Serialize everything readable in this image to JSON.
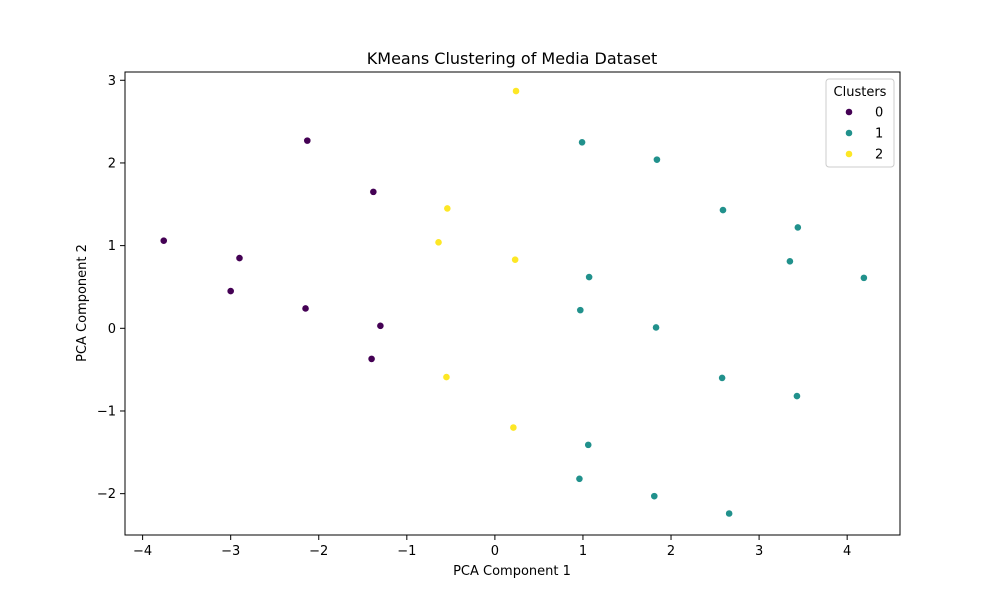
{
  "chart_data": {
    "type": "scatter",
    "title": "KMeans Clustering of Media Dataset",
    "xlabel": "PCA Component 1",
    "ylabel": "PCA Component 2",
    "xlim": [
      -4.2,
      4.6
    ],
    "ylim": [
      -2.5,
      3.1
    ],
    "xticks": [
      -4,
      -3,
      -2,
      -1,
      0,
      1,
      2,
      3,
      4
    ],
    "yticks": [
      -2,
      -1,
      0,
      1,
      2,
      3
    ],
    "grid": false,
    "legend": {
      "title": "Clusters",
      "placement": "top-right"
    },
    "series": [
      {
        "name": "0",
        "color": "#440154",
        "points": [
          [
            -3.76,
            1.06
          ],
          [
            -2.13,
            2.27
          ],
          [
            -1.38,
            1.65
          ],
          [
            -2.9,
            0.85
          ],
          [
            -3.0,
            0.45
          ],
          [
            -2.15,
            0.24
          ],
          [
            -1.3,
            0.03
          ],
          [
            -1.4,
            -0.37
          ]
        ]
      },
      {
        "name": "1",
        "color": "#21918c",
        "points": [
          [
            0.99,
            2.25
          ],
          [
            1.84,
            2.04
          ],
          [
            2.59,
            1.43
          ],
          [
            3.44,
            1.22
          ],
          [
            3.35,
            0.81
          ],
          [
            4.19,
            0.61
          ],
          [
            1.07,
            0.62
          ],
          [
            0.97,
            0.22
          ],
          [
            1.83,
            0.01
          ],
          [
            2.58,
            -0.6
          ],
          [
            3.43,
            -0.82
          ],
          [
            1.06,
            -1.41
          ],
          [
            0.96,
            -1.82
          ],
          [
            1.81,
            -2.03
          ],
          [
            2.66,
            -2.24
          ]
        ]
      },
      {
        "name": "2",
        "color": "#fde725",
        "points": [
          [
            0.24,
            2.87
          ],
          [
            -0.54,
            1.45
          ],
          [
            -0.64,
            1.04
          ],
          [
            0.23,
            0.83
          ],
          [
            -0.55,
            -0.59
          ],
          [
            0.21,
            -1.2
          ]
        ]
      }
    ]
  }
}
